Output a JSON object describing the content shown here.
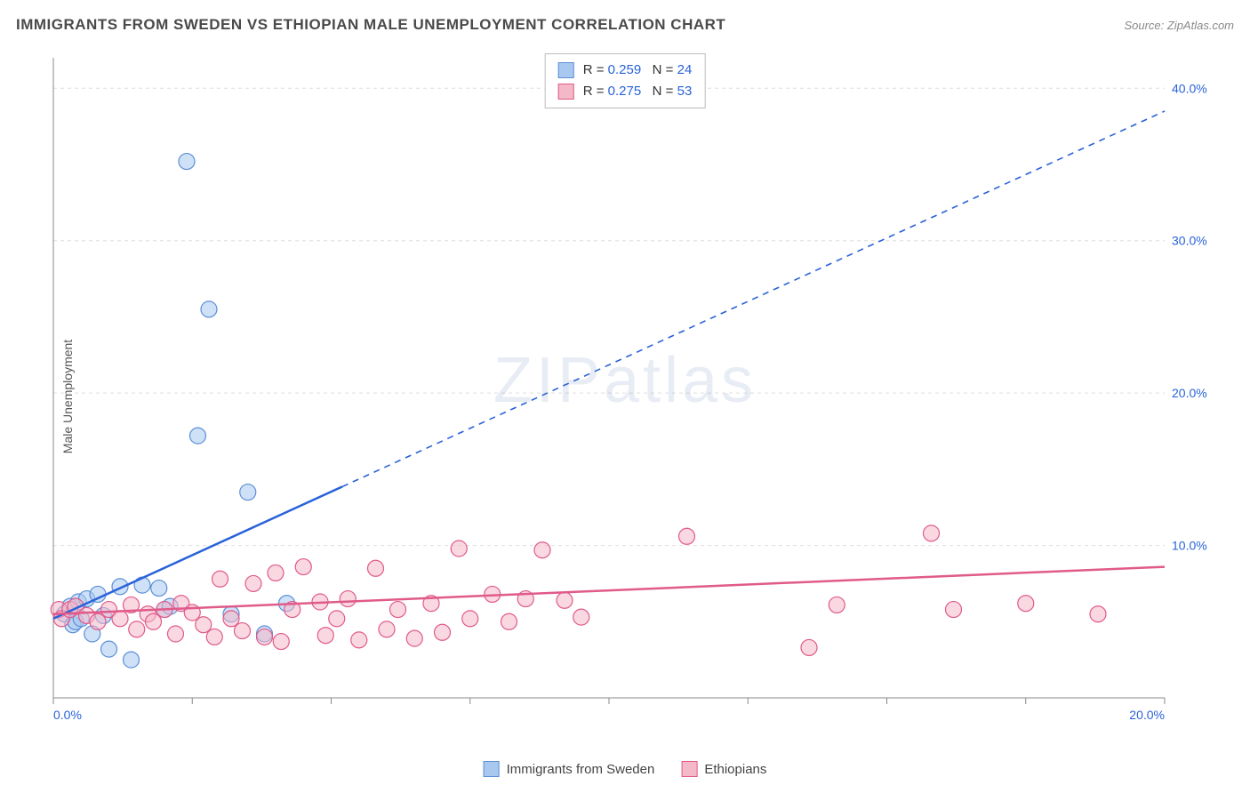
{
  "title": "IMMIGRANTS FROM SWEDEN VS ETHIOPIAN MALE UNEMPLOYMENT CORRELATION CHART",
  "source_label": "Source: ZipAtlas.com",
  "y_axis_label": "Male Unemployment",
  "watermark": "ZIPatlas",
  "chart": {
    "type": "scatter",
    "background_color": "#ffffff",
    "grid_color": "#dddddd",
    "axis_color": "#888888",
    "tick_label_color": "#2962d9",
    "xlim": [
      0,
      20
    ],
    "ylim": [
      0,
      42
    ],
    "x_ticks": [
      0,
      2.5,
      5,
      7.5,
      10,
      12.5,
      15,
      17.5,
      20
    ],
    "x_tick_labels": [
      "0.0%",
      "",
      "",
      "",
      "",
      "",
      "",
      "",
      "20.0%"
    ],
    "y_ticks": [
      10,
      20,
      30,
      40
    ],
    "y_tick_labels": [
      "10.0%",
      "20.0%",
      "30.0%",
      "40.0%"
    ],
    "series": [
      {
        "name": "Immigrants from Sweden",
        "marker_fill": "#a8c8f0",
        "marker_stroke": "#5b8fd6",
        "marker_fill_opacity": 0.55,
        "marker_radius": 9,
        "line_color": "#2962d9",
        "line_width": 2.5,
        "dash_after_x": 5.2,
        "R": "0.259",
        "N": "24",
        "trend": {
          "x1": 0,
          "y1": 5.2,
          "x2": 20,
          "y2": 38.5
        },
        "points": [
          [
            0.2,
            5.5
          ],
          [
            0.3,
            6.0
          ],
          [
            0.35,
            4.8
          ],
          [
            0.4,
            5.0
          ],
          [
            0.45,
            6.3
          ],
          [
            0.5,
            5.2
          ],
          [
            0.6,
            6.5
          ],
          [
            0.7,
            4.2
          ],
          [
            0.8,
            6.8
          ],
          [
            0.9,
            5.4
          ],
          [
            1.0,
            3.2
          ],
          [
            1.2,
            7.3
          ],
          [
            1.4,
            2.5
          ],
          [
            1.6,
            7.4
          ],
          [
            1.9,
            7.2
          ],
          [
            2.0,
            5.8
          ],
          [
            2.1,
            6.0
          ],
          [
            2.4,
            35.2
          ],
          [
            2.6,
            17.2
          ],
          [
            2.8,
            25.5
          ],
          [
            3.2,
            5.5
          ],
          [
            3.5,
            13.5
          ],
          [
            3.8,
            4.2
          ],
          [
            4.2,
            6.2
          ]
        ]
      },
      {
        "name": "Ethiopians",
        "marker_fill": "#f5b8c8",
        "marker_stroke": "#e05a8a",
        "marker_fill_opacity": 0.55,
        "marker_radius": 9,
        "line_color": "#e05a8a",
        "line_width": 2.5,
        "dash_after_x": 99,
        "R": "0.275",
        "N": "53",
        "trend": {
          "x1": 0,
          "y1": 5.5,
          "x2": 20,
          "y2": 8.6
        },
        "points": [
          [
            0.1,
            5.8
          ],
          [
            0.15,
            5.2
          ],
          [
            0.3,
            5.8
          ],
          [
            0.4,
            6.0
          ],
          [
            0.6,
            5.4
          ],
          [
            0.8,
            5.0
          ],
          [
            1.0,
            5.8
          ],
          [
            1.2,
            5.2
          ],
          [
            1.4,
            6.1
          ],
          [
            1.5,
            4.5
          ],
          [
            1.7,
            5.5
          ],
          [
            1.8,
            5.0
          ],
          [
            2.0,
            5.8
          ],
          [
            2.2,
            4.2
          ],
          [
            2.3,
            6.2
          ],
          [
            2.5,
            5.6
          ],
          [
            2.7,
            4.8
          ],
          [
            2.9,
            4.0
          ],
          [
            3.0,
            7.8
          ],
          [
            3.2,
            5.2
          ],
          [
            3.4,
            4.4
          ],
          [
            3.6,
            7.5
          ],
          [
            3.8,
            4.0
          ],
          [
            4.0,
            8.2
          ],
          [
            4.1,
            3.7
          ],
          [
            4.3,
            5.8
          ],
          [
            4.5,
            8.6
          ],
          [
            4.8,
            6.3
          ],
          [
            4.9,
            4.1
          ],
          [
            5.1,
            5.2
          ],
          [
            5.3,
            6.5
          ],
          [
            5.5,
            3.8
          ],
          [
            5.8,
            8.5
          ],
          [
            6.0,
            4.5
          ],
          [
            6.2,
            5.8
          ],
          [
            6.5,
            3.9
          ],
          [
            6.8,
            6.2
          ],
          [
            7.0,
            4.3
          ],
          [
            7.3,
            9.8
          ],
          [
            7.5,
            5.2
          ],
          [
            7.9,
            6.8
          ],
          [
            8.2,
            5.0
          ],
          [
            8.5,
            6.5
          ],
          [
            8.8,
            9.7
          ],
          [
            9.2,
            6.4
          ],
          [
            9.5,
            5.3
          ],
          [
            11.4,
            10.6
          ],
          [
            13.6,
            3.3
          ],
          [
            14.1,
            6.1
          ],
          [
            15.8,
            10.8
          ],
          [
            16.2,
            5.8
          ],
          [
            17.5,
            6.2
          ],
          [
            18.8,
            5.5
          ]
        ]
      }
    ]
  },
  "bottom_legend": [
    {
      "label": "Immigrants from Sweden",
      "fill": "#a8c8f0",
      "stroke": "#5b8fd6"
    },
    {
      "label": "Ethiopians",
      "fill": "#f5b8c8",
      "stroke": "#e05a8a"
    }
  ]
}
